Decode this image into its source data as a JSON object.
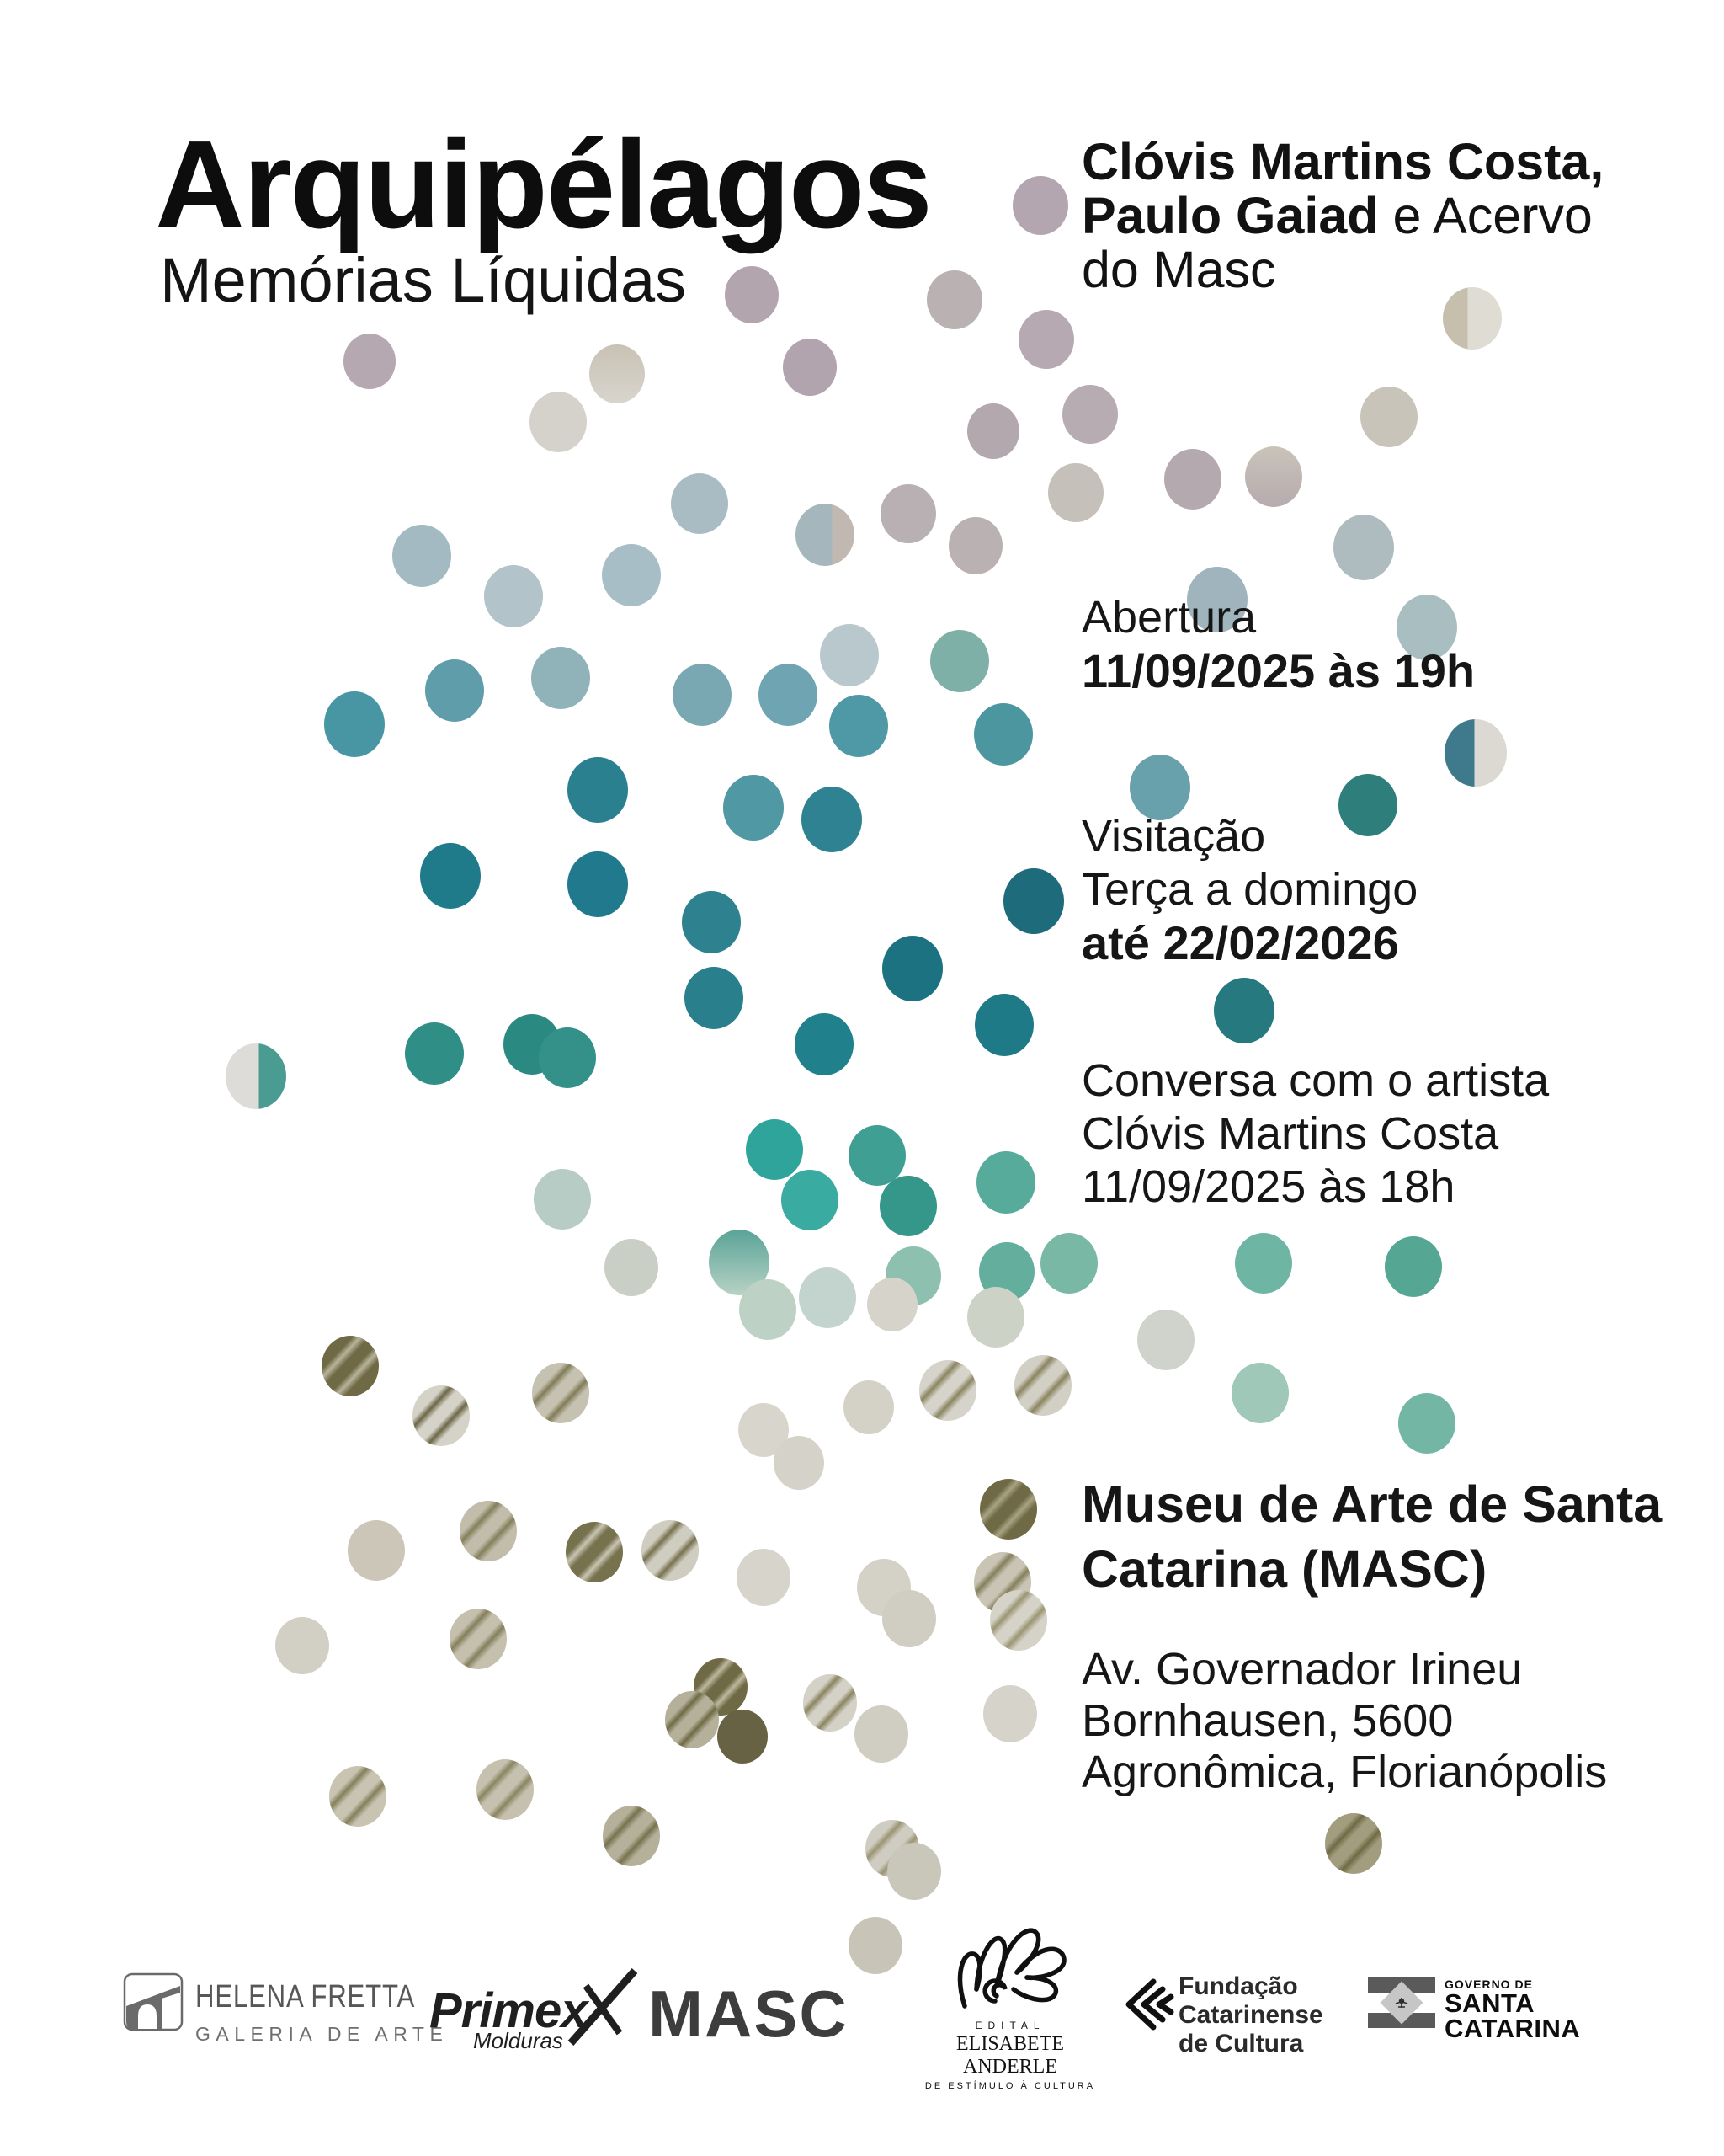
{
  "poster": {
    "title": "Arquipélagos",
    "subtitle": "Memórias Líquidas",
    "credits": {
      "line1": "Clóvis Martins Costa,",
      "line2_bold": "Paulo Gaiad",
      "line2_regular": " e Acervo",
      "line3": "do Masc"
    },
    "opening": {
      "label": "Abertura",
      "datetime": "11/09/2025 às 19h"
    },
    "visiting": {
      "label": "Visitação",
      "days": "Terça a domingo",
      "until": "até 22/02/2026"
    },
    "talk": {
      "line1": "Conversa com o artista",
      "line2": "Clóvis Martins Costa",
      "line3": "11/09/2025 às 18h"
    },
    "venue": {
      "name_line1": "Museu de Arte de Santa",
      "name_line2": "Catarina (MASC)",
      "address_line1": "Av. Governador Irineu",
      "address_line2": "Bornhausen, 5600",
      "address_line3": "Agronômica, Florianópolis"
    }
  },
  "logos": {
    "helena_fretta": {
      "name": "HELENA FRETTA",
      "tagline": "GALERIA DE ARTE"
    },
    "primex": {
      "name": "Primex",
      "tagline": "Molduras"
    },
    "masc": {
      "name": "MASC"
    },
    "elisabete_anderle": {
      "edital": "EDITAL",
      "name": "ELISABETE ANDERLE",
      "tagline": "DE ESTÍMULO À CULTURA"
    },
    "fundacao_catarinense": {
      "line1": "Fundação",
      "line2": "Catarinense",
      "line3": "de Cultura"
    },
    "governo_sc": {
      "line1": "GOVERNO DE",
      "line2": "SANTA",
      "line3": "CATARINA"
    }
  },
  "colors": {
    "background": "#ffffff",
    "text": "#141414",
    "mauve": "#b2a5ae",
    "pearl": "#d5d2cb",
    "gray_blue": "#a8bec6",
    "teal": "#4896a4",
    "dark_teal": "#1e6b7c",
    "teal_green": "#2f8e85",
    "cyan_teal": "#2fa49a",
    "seafoam": "#74b6a4",
    "pale_stone": "#d5d2c8",
    "olive": "#6f6a45"
  },
  "dots": [
    [
      1236,
      244,
      33,
      "#b3a6b0"
    ],
    [
      893,
      350,
      32,
      "#b2a5ae"
    ],
    [
      1134,
      356,
      33,
      "#bab1b3"
    ],
    [
      1749,
      378,
      35,
      "#c6bfae",
      "v",
      "#dfdcd3",
      0.42
    ],
    [
      439,
      429,
      31,
      "#b5a8b1"
    ],
    [
      733,
      444,
      33,
      "#c8c2b4",
      "g",
      "#d8d5ce"
    ],
    [
      962,
      436,
      32,
      "#b1a4ae"
    ],
    [
      1243,
      403,
      33,
      "#b6a9b1"
    ],
    [
      663,
      501,
      34,
      "#d5d2cb"
    ],
    [
      1180,
      512,
      31,
      "#b3a8ad"
    ],
    [
      1295,
      492,
      33,
      "#b7acb1"
    ],
    [
      1650,
      495,
      34,
      "#c9c4b9"
    ],
    [
      1079,
      610,
      33,
      "#b8b0b3"
    ],
    [
      1159,
      648,
      32,
      "#bab1b3"
    ],
    [
      1278,
      585,
      33,
      "#c6c0ba"
    ],
    [
      1417,
      569,
      34,
      "#b4a9ae"
    ],
    [
      1513,
      566,
      34,
      "#cac3b9",
      "g",
      "#b6abae"
    ],
    [
      1620,
      650,
      36,
      "#aebcc0"
    ],
    [
      1695,
      745,
      36,
      "#a9bec0"
    ],
    [
      1446,
      712,
      36,
      "#9fb4bd"
    ],
    [
      980,
      635,
      35,
      "#a5b6bc",
      "v",
      "#c2b8b2",
      0.62
    ],
    [
      831,
      598,
      34,
      "#a9bcc4"
    ],
    [
      501,
      660,
      35,
      "#a4bac2"
    ],
    [
      610,
      708,
      35,
      "#b2c3c9"
    ],
    [
      750,
      683,
      35,
      "#a8bec6"
    ],
    [
      1009,
      778,
      35,
      "#b8c8cc"
    ],
    [
      666,
      805,
      35,
      "#8fb3b9"
    ],
    [
      540,
      820,
      35,
      "#5f9dab"
    ],
    [
      421,
      860,
      36,
      "#4896a4"
    ],
    [
      834,
      825,
      35,
      "#7aa8b2"
    ],
    [
      936,
      825,
      35,
      "#6fa5b2"
    ],
    [
      1020,
      862,
      35,
      "#4f98a6"
    ],
    [
      1140,
      785,
      35,
      "#7fb0a8"
    ],
    [
      1192,
      872,
      35,
      "#4c96a0"
    ],
    [
      710,
      938,
      36,
      "#2b8090"
    ],
    [
      895,
      959,
      36,
      "#4f98a4"
    ],
    [
      988,
      973,
      36,
      "#2e8291"
    ],
    [
      1378,
      935,
      36,
      "#68a0ab"
    ],
    [
      1753,
      894,
      37,
      "#3e7a8c",
      "v",
      "#dcd9d2",
      0.48
    ],
    [
      1625,
      956,
      35,
      "#2e7f7c"
    ],
    [
      1228,
      1070,
      36,
      "#1e6b7c"
    ],
    [
      535,
      1040,
      36,
      "#1f7a8a"
    ],
    [
      710,
      1050,
      36,
      "#20798c"
    ],
    [
      845,
      1095,
      35,
      "#2e8290"
    ],
    [
      848,
      1185,
      35,
      "#2a7f8c"
    ],
    [
      1084,
      1150,
      36,
      "#1d7282"
    ],
    [
      1193,
      1217,
      35,
      "#1f7a88"
    ],
    [
      979,
      1240,
      35,
      "#20808c"
    ],
    [
      1478,
      1200,
      36,
      "#26797f"
    ],
    [
      516,
      1251,
      35,
      "#2f8e85"
    ],
    [
      632,
      1240,
      34,
      "#2a8a82"
    ],
    [
      674,
      1256,
      34,
      "#33918a"
    ],
    [
      304,
      1278,
      36,
      "#dddcd8",
      "v",
      "#4a9b92",
      0.55
    ],
    [
      920,
      1365,
      34,
      "#2fa49a"
    ],
    [
      962,
      1425,
      34,
      "#3aaba0"
    ],
    [
      1042,
      1372,
      34,
      "#3f9f93"
    ],
    [
      1079,
      1432,
      34,
      "#35968a"
    ],
    [
      1195,
      1404,
      35,
      "#57ab9b"
    ],
    [
      878,
      1499,
      36,
      "#5aa397",
      "g",
      "#b7d2c5"
    ],
    [
      912,
      1555,
      34,
      "#bdd2c4"
    ],
    [
      983,
      1541,
      34,
      "#c3d3cd"
    ],
    [
      668,
      1424,
      34,
      "#b8ccc6"
    ],
    [
      750,
      1505,
      32,
      "#c9cfc4"
    ],
    [
      1085,
      1515,
      33,
      "#8ec0b0"
    ],
    [
      1196,
      1510,
      33,
      "#63ae9d"
    ],
    [
      1270,
      1500,
      34,
      "#7ab8a6"
    ],
    [
      1501,
      1500,
      34,
      "#6fb5a3"
    ],
    [
      1679,
      1504,
      34,
      "#55a794"
    ],
    [
      1695,
      1690,
      34,
      "#74b6a4"
    ],
    [
      1497,
      1654,
      34,
      "#9fc8b8"
    ],
    [
      1060,
      1549,
      30,
      "#d6d3ca"
    ],
    [
      1183,
      1564,
      34,
      "#ccd2c6"
    ],
    [
      1385,
      1591,
      34,
      "#d0d3cb"
    ],
    [
      1126,
      1651,
      34,
      "#d6d3ca",
      "s",
      "#8a8560"
    ],
    [
      1239,
      1645,
      34,
      "#d2cfc5",
      "s",
      "#8a8560"
    ],
    [
      1032,
      1671,
      30,
      "#d4d1c7"
    ],
    [
      416,
      1622,
      34,
      "#6f6a45",
      "s",
      "#b8b49a"
    ],
    [
      524,
      1681,
      34,
      "#d5d2c8",
      "s",
      "#6b6747"
    ],
    [
      666,
      1654,
      34,
      "#c6c2b1",
      "s",
      "#817c58"
    ],
    [
      447,
      1841,
      34,
      "#cbc6b8"
    ],
    [
      580,
      1818,
      34,
      "#c2bdab",
      "s",
      "#847f5b"
    ],
    [
      706,
      1843,
      34,
      "#77724e",
      "s",
      "#c9c4b2"
    ],
    [
      796,
      1841,
      34,
      "#cfccc0",
      "s",
      "#77724e"
    ],
    [
      907,
      1698,
      30,
      "#d8d5cc"
    ],
    [
      949,
      1737,
      30,
      "#d5d2c9"
    ],
    [
      907,
      1873,
      32,
      "#d7d4cb"
    ],
    [
      359,
      1954,
      32,
      "#d2cfc4"
    ],
    [
      568,
      1946,
      34,
      "#c5c0ae",
      "s",
      "#847f5b"
    ],
    [
      856,
      2003,
      32,
      "#6f6a45",
      "s",
      "#bdb89e"
    ],
    [
      822,
      2042,
      32,
      "#b5b09a",
      "s",
      "#6f6a45"
    ],
    [
      882,
      2062,
      30,
      "#676243"
    ],
    [
      986,
      2022,
      32,
      "#d4d1c7",
      "s",
      "#8a8560"
    ],
    [
      1047,
      2059,
      32,
      "#d0cdc3"
    ],
    [
      1198,
      1792,
      34,
      "#6f6a45",
      "s",
      "#a8a383"
    ],
    [
      1191,
      1879,
      34,
      "#c9c4b4",
      "s",
      "#847f5b"
    ],
    [
      1210,
      1924,
      34,
      "#d5d2c8",
      "s",
      "#9a9572"
    ],
    [
      1050,
      1885,
      32,
      "#d4d1c7"
    ],
    [
      1080,
      1922,
      32,
      "#d0cdc3"
    ],
    [
      1200,
      2035,
      32,
      "#d6d3ca"
    ],
    [
      425,
      2133,
      34,
      "#c9c4b2",
      "s",
      "#847f5b"
    ],
    [
      600,
      2125,
      34,
      "#c6c1af",
      "s",
      "#8a8560"
    ],
    [
      750,
      2180,
      34,
      "#b5b09a",
      "s",
      "#77724e"
    ],
    [
      1608,
      2189,
      34,
      "#a29d7f",
      "s",
      "#6f6a45"
    ],
    [
      1060,
      2195,
      32,
      "#cfccc2",
      "s",
      "#9a9572"
    ],
    [
      1086,
      2222,
      32,
      "#c9c6ba"
    ],
    [
      1040,
      2310,
      32,
      "#c8c5b8"
    ]
  ]
}
